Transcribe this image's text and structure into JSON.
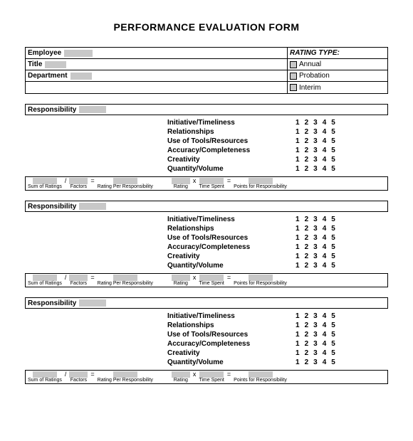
{
  "title": "PERFORMANCE EVALUATION FORM",
  "header": {
    "employee_label": "Employee",
    "title_label": "Title",
    "department_label": "Department",
    "rating_type_label": "RATING TYPE:",
    "rating_annual": "Annual",
    "rating_probation": "Probation",
    "rating_interim": "Interim"
  },
  "responsibility": {
    "label": "Responsibility",
    "criteria": [
      "Initiative/Timeliness",
      "Relationships",
      "Use of Tools/Resources",
      "Accuracy/Completeness",
      "Creativity",
      "Quantity/Volume"
    ],
    "rating_scale": [
      "1",
      "2",
      "3",
      "4",
      "5"
    ]
  },
  "calc": {
    "sum_of_ratings": "Sum of Ratings",
    "divide": "/",
    "factors": "Factors",
    "equals": "=",
    "rating_per_resp": "Rating Per Responsibility",
    "times": "x",
    "rating": "Rating",
    "time_spent": "Time Spent",
    "points_for_resp": "Points for Responsibility"
  },
  "section_count": 3,
  "colors": {
    "fill_gray": "#c8c8c8",
    "border": "#000000",
    "background": "#ffffff",
    "text": "#000000"
  }
}
